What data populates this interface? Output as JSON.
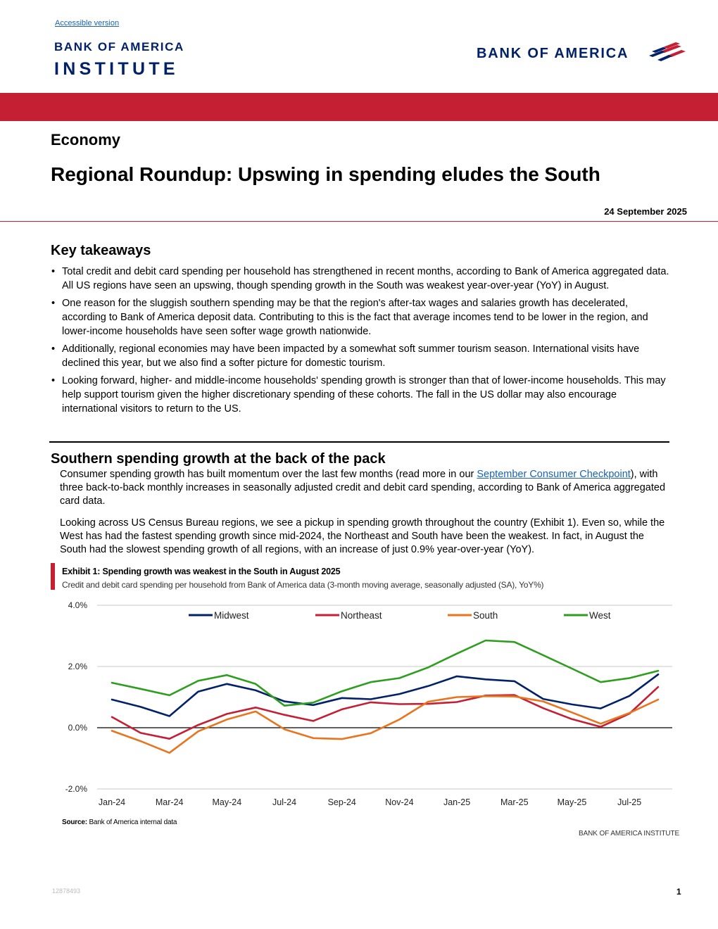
{
  "header": {
    "accessible_link": "Accessible version",
    "institute_line1": "BANK OF AMERICA",
    "institute_line2": "INSTITUTE",
    "logo_text": "BANK OF AMERICA",
    "brand_red": "#c41f33",
    "brand_blue": "#012169"
  },
  "article": {
    "section": "Economy",
    "title": "Regional Roundup: Upswing in spending eludes the South",
    "date": "24 September 2025",
    "key_takeaways_heading": "Key takeaways",
    "key_takeaways": [
      "Total credit and debit card spending per household has strengthened in recent months, according to Bank of America aggregated data. All US regions have seen an upswing, though spending growth in the South was weakest year-over-year (YoY) in August.",
      "One reason for the sluggish southern spending may be that the region's after-tax wages and salaries growth has decelerated, according to Bank of America deposit data. Contributing to this is the fact that average incomes tend to be lower in the region, and lower-income households have seen softer wage growth nationwide.",
      "Additionally, regional economies may have been impacted by a somewhat soft summer tourism season. International visits have declined this year, but we also find a softer picture for domestic tourism.",
      "Looking forward, higher- and middle-income households' spending growth is stronger than that of lower-income households. This may help support tourism given the higher discretionary spending of these cohorts. The fall in the US dollar may also encourage international visitors to return to the US."
    ],
    "section2_heading": "Southern spending growth at the back of the pack",
    "para1_before_link": "Consumer spending growth has built momentum over the last few months (read more in our ",
    "para1_link": "September Consumer Checkpoint",
    "para1_after_link": "), with three back-to-back monthly increases in seasonally adjusted credit and debit card spending, according to Bank of America aggregated card data.",
    "para2": "Looking across US Census Bureau regions, we see a pickup in spending growth throughout the country (Exhibit 1). Even so, while the West has had the fastest spending growth since mid-2024, the Northeast and South have been the weakest. In fact, in August the South had the slowest spending growth of all regions, with an increase of just 0.9% year-over-year (YoY)."
  },
  "exhibit": {
    "title": "Exhibit 1: Spending growth was weakest in the South in August 2025",
    "subtitle": "Credit and debit card spending per household from Bank of America data (3-month moving average, seasonally adjusted (SA), YoY%)",
    "source_label": "Source:",
    "source_text": "Bank of America internal data",
    "footer_brand": "BANK OF AMERICA INSTITUTE"
  },
  "chart_data": {
    "type": "line",
    "title": "Exhibit 1: Spending growth was weakest in the South in August 2025",
    "xlabel": "",
    "ylabel": "",
    "ylim": [
      -2,
      4
    ],
    "yticks": [
      -2,
      0,
      2,
      4
    ],
    "ytick_labels": [
      "-2.0%",
      "0.0%",
      "2.0%",
      "4.0%"
    ],
    "grid": true,
    "legend": "top",
    "x": [
      "Jan-24",
      "Feb-24",
      "Mar-24",
      "Apr-24",
      "May-24",
      "Jun-24",
      "Jul-24",
      "Aug-24",
      "Sep-24",
      "Oct-24",
      "Nov-24",
      "Dec-24",
      "Jan-25",
      "Feb-25",
      "Mar-25",
      "Apr-25",
      "May-25",
      "Jun-25",
      "Jul-25",
      "Aug-25"
    ],
    "xtick_labels": [
      "Jan-24",
      "Mar-24",
      "May-24",
      "Jul-24",
      "Sep-24",
      "Nov-24",
      "Jan-25",
      "Mar-25",
      "May-25",
      "Jul-25"
    ],
    "series": [
      {
        "name": "Midwest",
        "color": "#012169",
        "values": [
          0.92,
          0.68,
          0.38,
          1.18,
          1.43,
          1.22,
          0.86,
          0.74,
          0.97,
          0.93,
          1.1,
          1.36,
          1.68,
          1.58,
          1.52,
          0.94,
          0.76,
          0.63,
          1.04,
          1.74
        ]
      },
      {
        "name": "Northeast",
        "color": "#c41f33",
        "values": [
          0.35,
          -0.17,
          -0.36,
          0.09,
          0.45,
          0.66,
          0.42,
          0.22,
          0.6,
          0.83,
          0.77,
          0.78,
          0.84,
          1.05,
          1.07,
          0.64,
          0.28,
          0.03,
          0.46,
          1.33
        ]
      },
      {
        "name": "South",
        "color": "#e8741e",
        "values": [
          -0.1,
          -0.44,
          -0.82,
          -0.12,
          0.27,
          0.53,
          -0.05,
          -0.34,
          -0.37,
          -0.18,
          0.27,
          0.85,
          1.0,
          1.03,
          1.02,
          0.86,
          0.5,
          0.13,
          0.48,
          0.92
        ]
      },
      {
        "name": "West",
        "color": "#2e9e1f",
        "values": [
          1.47,
          1.27,
          1.06,
          1.53,
          1.72,
          1.43,
          0.72,
          0.82,
          1.19,
          1.49,
          1.62,
          1.97,
          2.42,
          2.85,
          2.8,
          2.37,
          1.93,
          1.49,
          1.62,
          1.86
        ]
      }
    ]
  },
  "footer": {
    "doc_id": "12878493",
    "page_number": "1"
  }
}
